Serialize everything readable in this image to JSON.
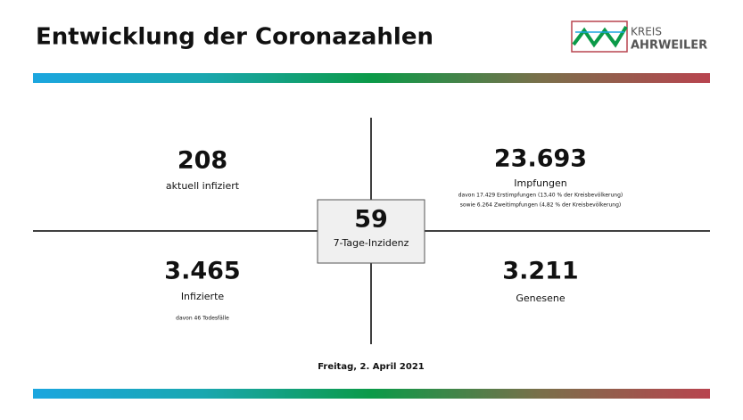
{
  "header": {
    "title": "Entwicklung der Coronazahlen",
    "logo": {
      "line1": "KREIS",
      "line2": "AHRWEILER"
    }
  },
  "quadrants": [
    {
      "number": "208",
      "label": "aktuell infiziert"
    },
    {
      "number": "23.693",
      "label": "Impfungen",
      "notes": [
        "davon 17.429 Erstimpfungen (13,40 % der Kreisbevölkerung)",
        "sowie 6.264 Zweitimpfungen (4,82 % der Kreisbevölkerung)"
      ]
    },
    {
      "number": "3.465",
      "label": "Infizierte",
      "notes": [
        "davon 46 Todesfälle"
      ]
    },
    {
      "number": "3.211",
      "label": "Genesene"
    }
  ],
  "center": {
    "number": "59",
    "label": "7-Tage-Inzidenz"
  },
  "footer": {
    "date": "Freitag, 2. April 2021"
  }
}
